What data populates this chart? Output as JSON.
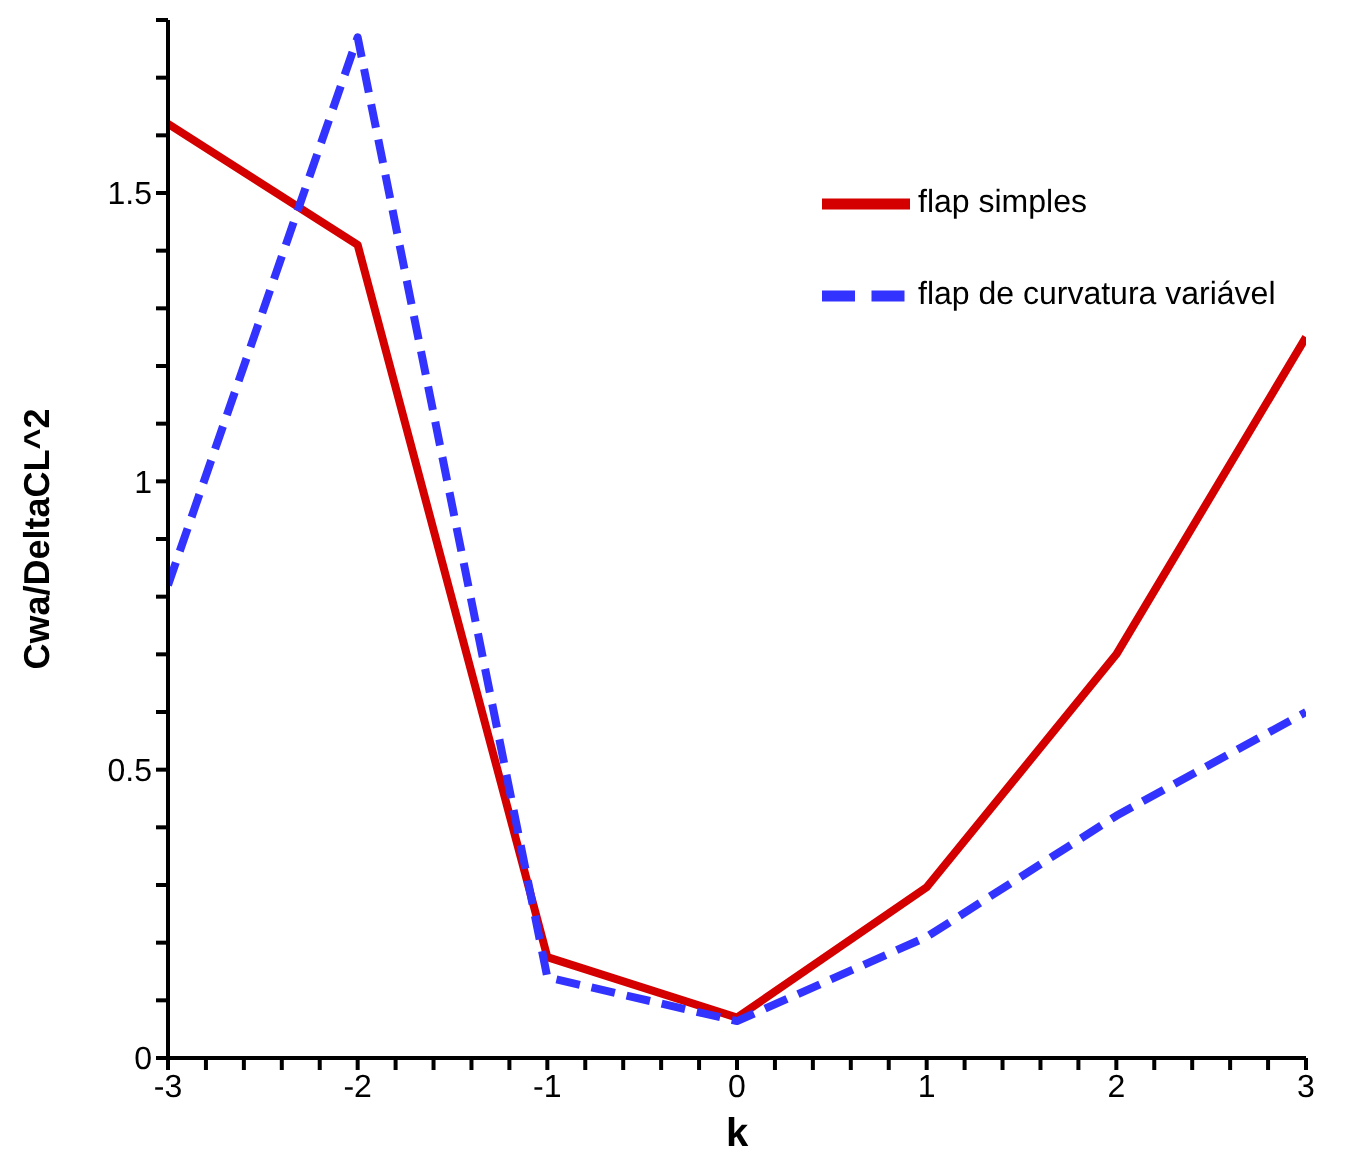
{
  "chart_data": {
    "type": "line",
    "xlabel": "k",
    "ylabel": "Cwa/DeltaCL^2",
    "x": [
      -3,
      -2,
      -1,
      0,
      1,
      2,
      3
    ],
    "series": [
      {
        "name": "flap simples",
        "color": "#d40000",
        "values": [
          1.62,
          1.41,
          0.175,
          0.07,
          0.296,
          0.7,
          1.25
        ],
        "line_style": "solid"
      },
      {
        "name": "flap de curvatura variável",
        "color": "#3333ff",
        "values": [
          0.82,
          1.77,
          0.14,
          0.064,
          0.21,
          0.42,
          0.6
        ],
        "line_style": "dashed"
      }
    ],
    "xlim": [
      -3,
      3
    ],
    "ylim": [
      0,
      1.8
    ],
    "xticks": [
      -3,
      {
        "value": -2.8,
        "label": null
      },
      {
        "value": -2.6,
        "label": null
      },
      {
        "value": -2.4,
        "label": null
      },
      {
        "value": -2.2,
        "label": null
      },
      -2,
      {
        "value": -1.8,
        "label": null
      },
      {
        "value": -1.6,
        "label": null
      },
      {
        "value": -1.4,
        "label": null
      },
      {
        "value": -1.2,
        "label": null
      },
      -1,
      {
        "value": -0.8,
        "label": null
      },
      {
        "value": -0.6,
        "label": null
      },
      {
        "value": -0.4,
        "label": null
      },
      {
        "value": -0.2,
        "label": null
      },
      0,
      {
        "value": 0.2,
        "label": null
      },
      {
        "value": 0.4,
        "label": null
      },
      {
        "value": 0.6,
        "label": null
      },
      {
        "value": 0.8,
        "label": null
      },
      1,
      {
        "value": 1.2,
        "label": null
      },
      {
        "value": 1.4,
        "label": null
      },
      {
        "value": 1.6,
        "label": null
      },
      {
        "value": 1.8,
        "label": null
      },
      2,
      {
        "value": 2.2,
        "label": null
      },
      {
        "value": 2.4,
        "label": null
      },
      {
        "value": 2.6,
        "label": null
      },
      {
        "value": 2.8,
        "label": null
      },
      3
    ],
    "yticks": [
      0,
      {
        "value": 0.1,
        "label": null
      },
      {
        "value": 0.2,
        "label": null
      },
      {
        "value": 0.3,
        "label": null
      },
      {
        "value": 0.4,
        "label": null
      },
      0.5,
      {
        "value": 0.6,
        "label": null
      },
      {
        "value": 0.7,
        "label": null
      },
      {
        "value": 0.8,
        "label": null
      },
      {
        "value": 0.9,
        "label": null
      },
      1,
      {
        "value": 1.1,
        "label": null
      },
      {
        "value": 1.2,
        "label": null
      },
      {
        "value": 1.3,
        "label": null
      },
      {
        "value": 1.4,
        "label": null
      },
      1.5,
      {
        "value": 1.6,
        "label": null
      },
      {
        "value": 1.7,
        "label": null
      },
      {
        "value": 1.8,
        "label": null
      }
    ],
    "legend": "top right",
    "marker": "none",
    "grid": false
  }
}
